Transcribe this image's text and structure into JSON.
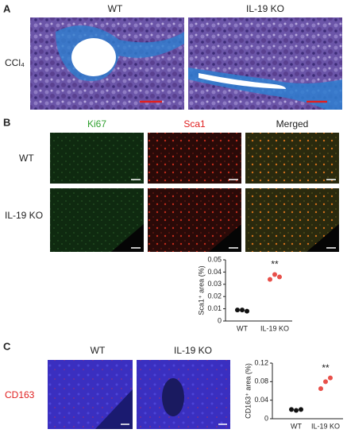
{
  "panel_a": {
    "label": "A",
    "columns": [
      "WT",
      "IL-19 KO"
    ],
    "row_label": "CCl₄"
  },
  "panel_b": {
    "label": "B",
    "columns": [
      "Ki67",
      "Sca1",
      "Merged"
    ],
    "rows": [
      "WT",
      "IL-19 KO"
    ],
    "chart": {
      "type": "scatter",
      "y_label": "Sca1⁺ area (%)",
      "categories": [
        "WT",
        "IL-19 KO"
      ],
      "values": [
        [
          0.009,
          0.009,
          0.008
        ],
        [
          0.034,
          0.038,
          0.036
        ]
      ],
      "colors": [
        "#111111",
        "#e8504a"
      ],
      "annotation": "**",
      "ylim": [
        0,
        0.05
      ],
      "yticks": [
        0,
        0.01,
        0.02,
        0.03,
        0.04,
        0.05
      ]
    }
  },
  "panel_c": {
    "label": "C",
    "columns": [
      "WT",
      "IL-19 KO"
    ],
    "row_label": "CD163",
    "chart": {
      "type": "scatter",
      "y_label": "CD163⁺ area (%)",
      "categories": [
        "WT",
        "IL-19 KO"
      ],
      "values": [
        [
          0.02,
          0.018,
          0.02
        ],
        [
          0.065,
          0.08,
          0.088
        ]
      ],
      "colors": [
        "#111111",
        "#e8504a"
      ],
      "annotation": "**",
      "ylim": [
        0,
        0.12
      ],
      "yticks": [
        0,
        0.04,
        0.08,
        0.12
      ]
    }
  }
}
